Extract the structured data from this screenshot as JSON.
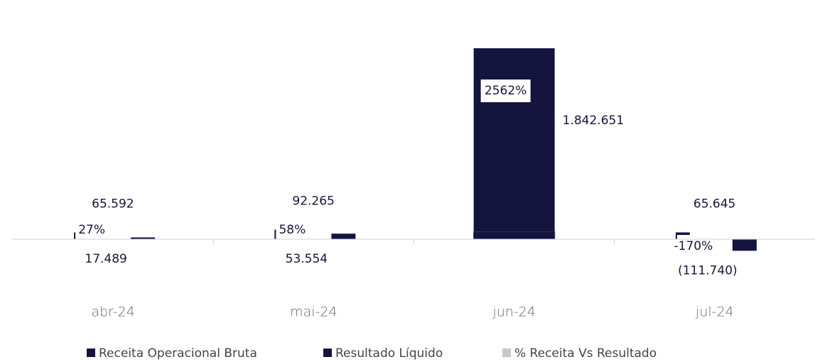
{
  "chart_data": {
    "type": "bar",
    "categories": [
      "abr-24",
      "mai-24",
      "jun-24",
      "jul-24"
    ],
    "series": [
      {
        "name": "Receita Operacional Bruta",
        "color": "#14143f",
        "values": [
          65592,
          92265,
          71922,
          65645
        ],
        "value_labels": [
          "65.592",
          "92.265",
          null,
          "65.645"
        ]
      },
      {
        "name": "Resultado Líquido",
        "color": "#14143f",
        "values": [
          17489,
          53554,
          1842651,
          -111740
        ],
        "value_labels": [
          "17.489",
          "53.554",
          "1.842.651",
          "(111.740)"
        ]
      },
      {
        "name": "% Receita Vs Resultado",
        "color": "#c8c8c8",
        "values": [
          27,
          58,
          2562,
          -170
        ],
        "value_labels": [
          "27%",
          "58%",
          "2562%",
          "-170%"
        ]
      }
    ],
    "ylim": [
      -400000,
      1900000
    ],
    "legend": "bottom"
  }
}
